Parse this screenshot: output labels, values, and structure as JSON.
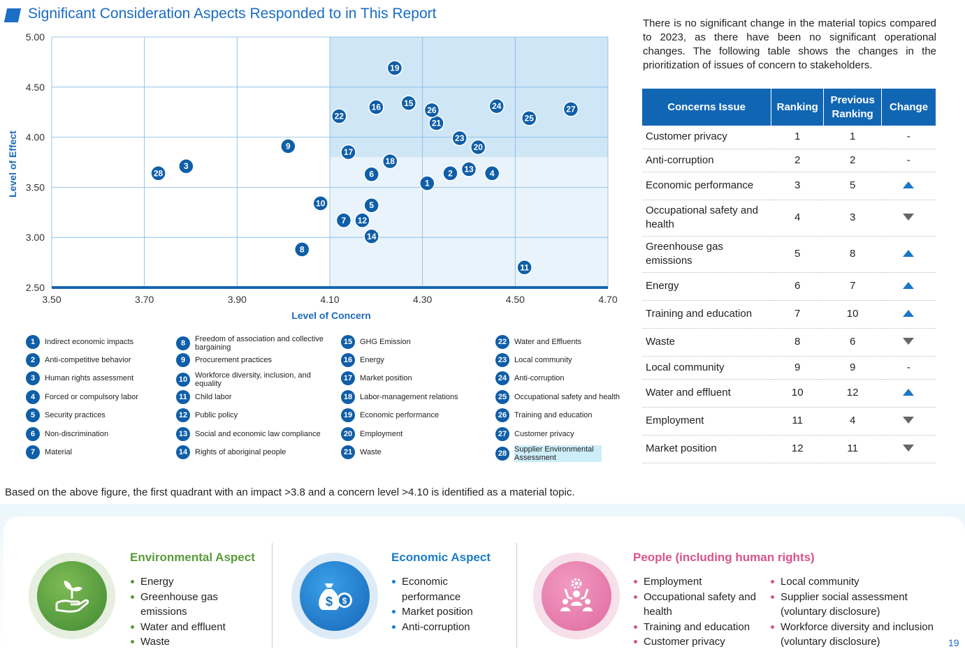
{
  "title": "Significant Consideration Aspects Responded to in This Report",
  "chart_data": {
    "type": "scatter",
    "xlabel": "Level of Concern",
    "ylabel": "Level of Effect",
    "xlim": [
      3.5,
      4.7
    ],
    "ylim": [
      2.5,
      5.0
    ],
    "x_ticks": [
      "3.50",
      "3.70",
      "3.90",
      "4.10",
      "4.30",
      "4.50",
      "4.70"
    ],
    "y_ticks": [
      "5.00",
      "4.50",
      "4.00",
      "3.50",
      "3.00",
      "2.50"
    ],
    "highlight_region": {
      "x_min": 4.1,
      "y_min": 3.8
    },
    "points": [
      {
        "id": "1",
        "x": 4.31,
        "y": 3.54
      },
      {
        "id": "2",
        "x": 4.36,
        "y": 3.64
      },
      {
        "id": "3",
        "x": 3.79,
        "y": 3.71
      },
      {
        "id": "4",
        "x": 4.45,
        "y": 3.64
      },
      {
        "id": "5",
        "x": 4.19,
        "y": 3.32
      },
      {
        "id": "6",
        "x": 4.19,
        "y": 3.63
      },
      {
        "id": "7",
        "x": 4.13,
        "y": 3.17
      },
      {
        "id": "8",
        "x": 4.04,
        "y": 2.88
      },
      {
        "id": "9",
        "x": 4.01,
        "y": 3.91
      },
      {
        "id": "10",
        "x": 4.08,
        "y": 3.34
      },
      {
        "id": "11",
        "x": 4.52,
        "y": 2.7
      },
      {
        "id": "12",
        "x": 4.17,
        "y": 3.17
      },
      {
        "id": "13",
        "x": 4.4,
        "y": 3.68
      },
      {
        "id": "14",
        "x": 4.19,
        "y": 3.01
      },
      {
        "id": "15",
        "x": 4.27,
        "y": 4.34
      },
      {
        "id": "16",
        "x": 4.2,
        "y": 4.3
      },
      {
        "id": "17",
        "x": 4.14,
        "y": 3.85
      },
      {
        "id": "18",
        "x": 4.23,
        "y": 3.76
      },
      {
        "id": "19",
        "x": 4.24,
        "y": 4.69
      },
      {
        "id": "20",
        "x": 4.42,
        "y": 3.9
      },
      {
        "id": "21",
        "x": 4.33,
        "y": 4.14
      },
      {
        "id": "22",
        "x": 4.12,
        "y": 4.21
      },
      {
        "id": "23",
        "x": 4.38,
        "y": 3.99
      },
      {
        "id": "24",
        "x": 4.46,
        "y": 4.31
      },
      {
        "id": "25",
        "x": 4.53,
        "y": 4.19
      },
      {
        "id": "26",
        "x": 4.32,
        "y": 4.27
      },
      {
        "id": "27",
        "x": 4.62,
        "y": 4.28
      },
      {
        "id": "28",
        "x": 3.73,
        "y": 3.64
      }
    ]
  },
  "legend": [
    {
      "num": "1",
      "label": "Indirect economic impacts"
    },
    {
      "num": "2",
      "label": "Anti-competitive behavior"
    },
    {
      "num": "3",
      "label": "Human rights assessment"
    },
    {
      "num": "4",
      "label": "Forced or compulsory labor"
    },
    {
      "num": "5",
      "label": "Security practices"
    },
    {
      "num": "6",
      "label": "Non-discrimination"
    },
    {
      "num": "7",
      "label": "Material"
    },
    {
      "num": "8",
      "label": "Freedom of association and collective bargaining"
    },
    {
      "num": "9",
      "label": "Procurement practices"
    },
    {
      "num": "10",
      "label": "Workforce diversity, inclusion, and equality"
    },
    {
      "num": "11",
      "label": "Child labor"
    },
    {
      "num": "12",
      "label": "Public policy"
    },
    {
      "num": "13",
      "label": "Social and economic law compliance"
    },
    {
      "num": "14",
      "label": "Rights of aboriginal people"
    },
    {
      "num": "15",
      "label": "GHG Emission"
    },
    {
      "num": "16",
      "label": "Energy"
    },
    {
      "num": "17",
      "label": "Market position"
    },
    {
      "num": "18",
      "label": "Labor-management relations"
    },
    {
      "num": "19",
      "label": "Economic performance"
    },
    {
      "num": "20",
      "label": "Employment"
    },
    {
      "num": "21",
      "label": "Waste"
    },
    {
      "num": "22",
      "label": "Water and Effluents"
    },
    {
      "num": "23",
      "label": "Local community"
    },
    {
      "num": "24",
      "label": "Anti-corruption"
    },
    {
      "num": "25",
      "label": "Occupational safety and health"
    },
    {
      "num": "26",
      "label": "Training and education"
    },
    {
      "num": "27",
      "label": "Customer privacy"
    },
    {
      "num": "28",
      "label": "Supplier Environmental Assessment"
    }
  ],
  "intro_text": "There is no significant change in the material topics compared to 2023, as there have been no significant operational changes. The following table shows the changes in the prioritization of issues of concern to stakeholders.",
  "table": {
    "headers": {
      "issue": "Concerns Issue",
      "ranking": "Ranking",
      "previous": "Previous Ranking",
      "change": "Change"
    },
    "rows": [
      {
        "issue": "Customer privacy",
        "ranking": "1",
        "previous": "1",
        "change": "-"
      },
      {
        "issue": "Anti-corruption",
        "ranking": "2",
        "previous": "2",
        "change": "-"
      },
      {
        "issue": "Economic performance",
        "ranking": "3",
        "previous": "5",
        "change": "up"
      },
      {
        "issue": "Occupational safety and health",
        "ranking": "4",
        "previous": "3",
        "change": "down"
      },
      {
        "issue": "Greenhouse gas emissions",
        "ranking": "5",
        "previous": "8",
        "change": "up"
      },
      {
        "issue": "Energy",
        "ranking": "6",
        "previous": "7",
        "change": "up"
      },
      {
        "issue": "Training and education",
        "ranking": "7",
        "previous": "10",
        "change": "up"
      },
      {
        "issue": "Waste",
        "ranking": "8",
        "previous": "6",
        "change": "down"
      },
      {
        "issue": "Local community",
        "ranking": "9",
        "previous": "9",
        "change": "-"
      },
      {
        "issue": "Water and effluent",
        "ranking": "10",
        "previous": "12",
        "change": "up"
      },
      {
        "issue": "Employment",
        "ranking": "11",
        "previous": "4",
        "change": "down"
      },
      {
        "issue": "Market position",
        "ranking": "12",
        "previous": "11",
        "change": "down"
      }
    ]
  },
  "note": "Based on the above figure, the first quadrant with an impact >3.8 and a concern level >4.10 is identified as a material topic.",
  "aspects": {
    "environmental": {
      "title": "Environmental Aspect",
      "color": "#5a9a3c",
      "icon": "plant-hand-icon",
      "items": [
        "Energy",
        "Greenhouse gas emissions",
        "Water and effluent",
        "Waste"
      ]
    },
    "economic": {
      "title": "Economic Aspect",
      "color": "#1a7cc8",
      "icon": "money-bag-icon",
      "items": [
        "Economic performance",
        "Market position",
        "Anti-corruption"
      ]
    },
    "people": {
      "title": "People (including human rights)",
      "color": "#d8538c",
      "icon": "people-gear-icon",
      "items_col1": [
        "Employment",
        "Occupational safety and health",
        "Training and education",
        "Customer privacy"
      ],
      "items_col2": [
        "Local community",
        "Supplier social assessment (voluntary disclosure)",
        "Workforce diversity and inclusion (voluntary disclosure)"
      ]
    }
  },
  "page_number": "19"
}
